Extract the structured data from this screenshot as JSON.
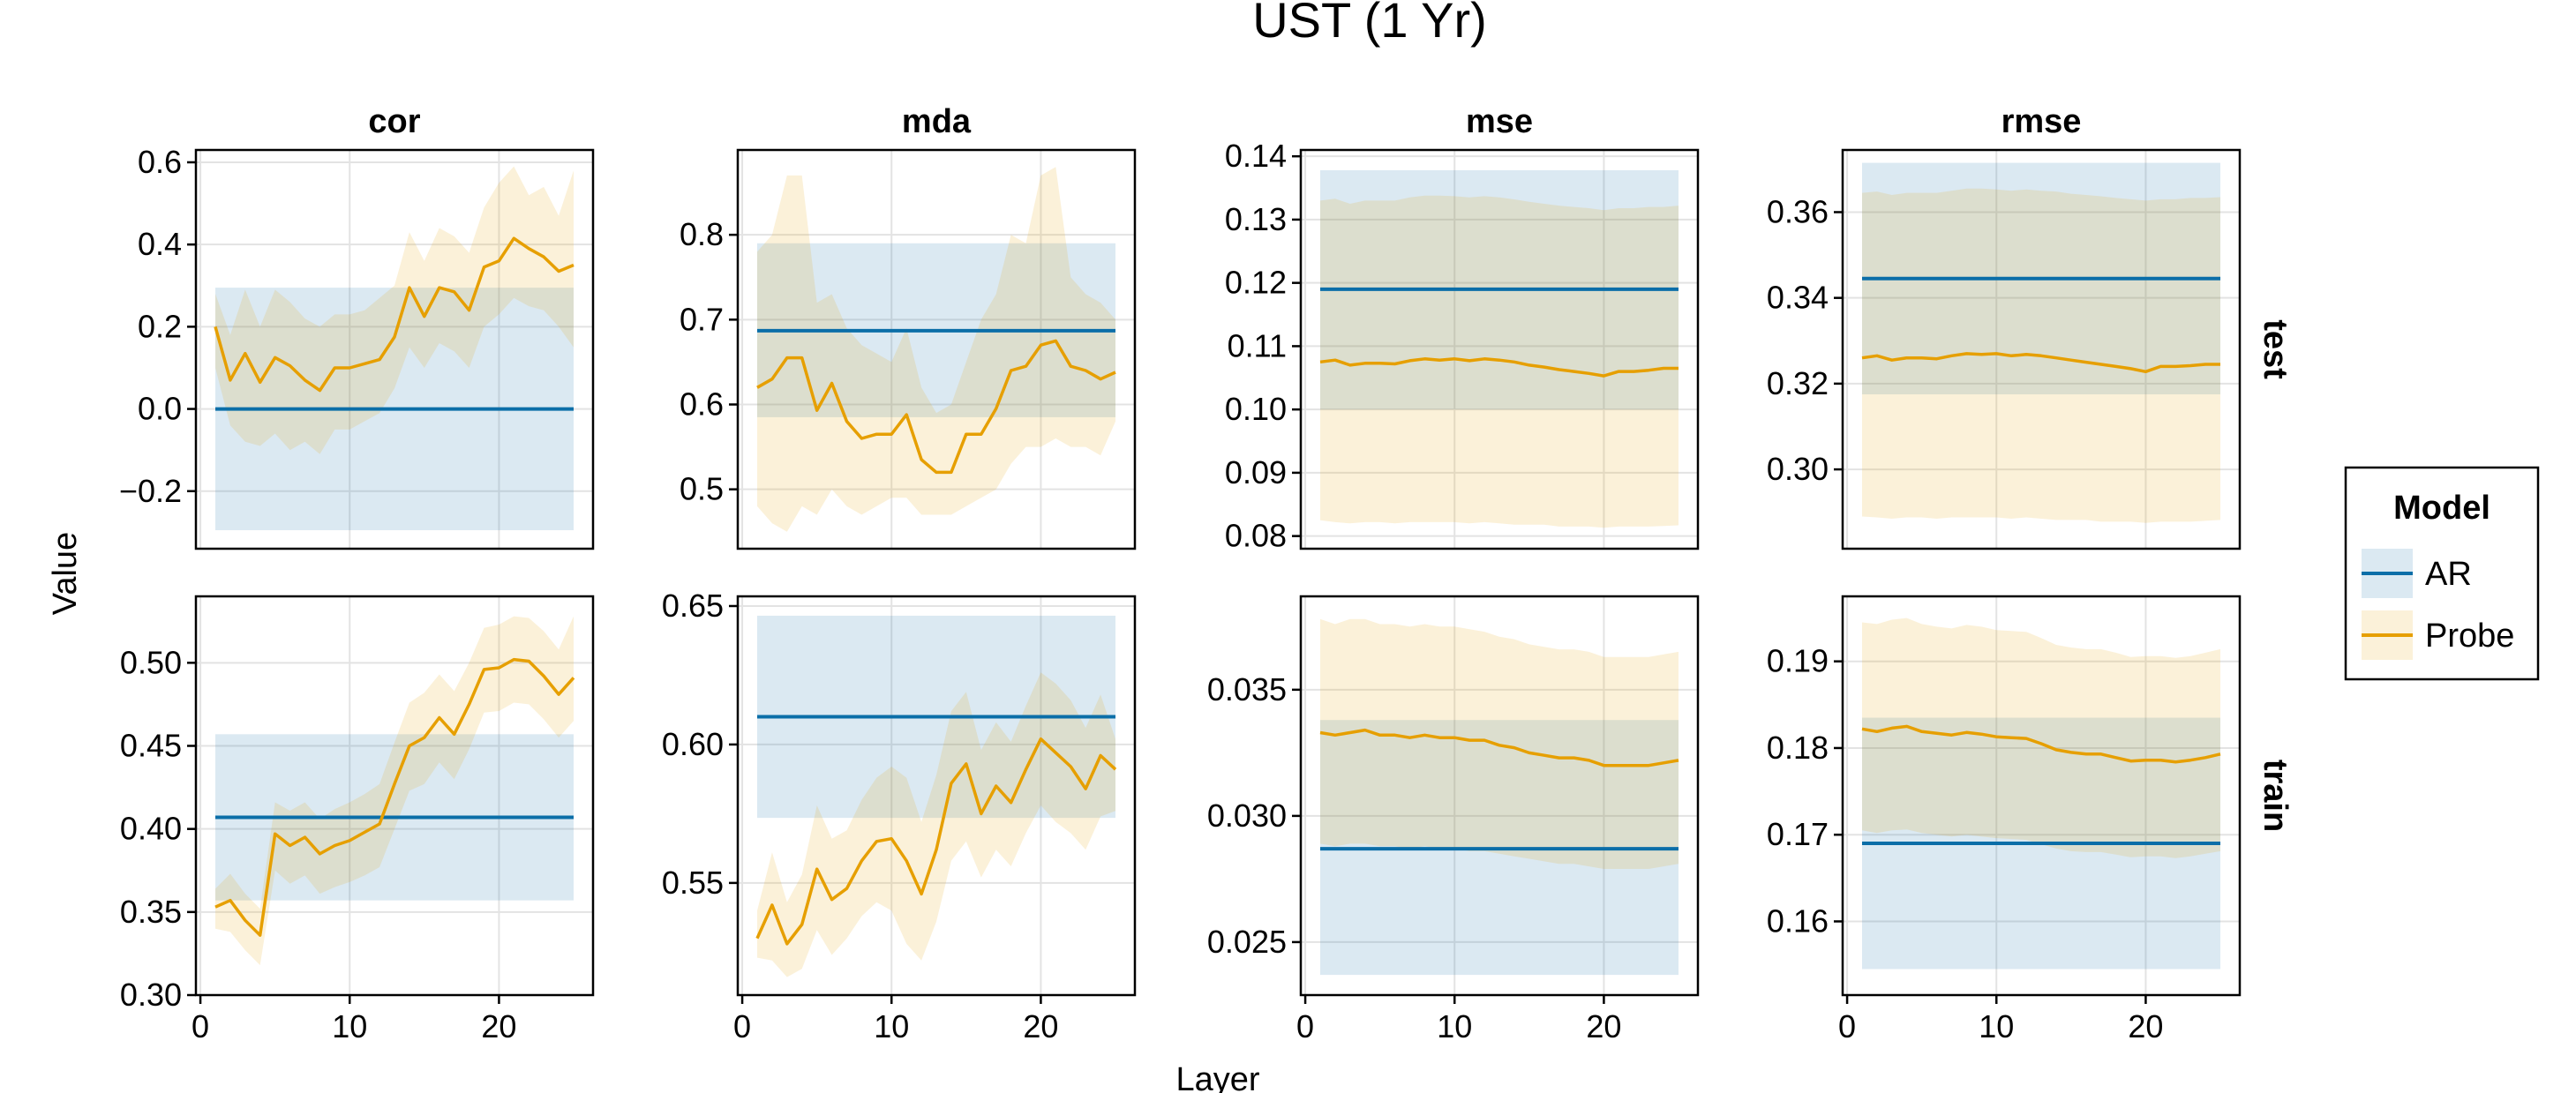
{
  "chart_data": {
    "type": "line",
    "title": "UST (1 Yr)",
    "xlabel": "Layer",
    "ylabel": "Value",
    "colors": {
      "AR": "#0b6ea8",
      "Probe": "#e69f00"
    },
    "legend": {
      "title": "Model",
      "placement": "right",
      "entries": [
        {
          "label": "AR",
          "color": "#0b6ea8"
        },
        {
          "label": "Probe",
          "color": "#e69f00"
        }
      ]
    },
    "grid": true,
    "panels": [
      {
        "metric": "cor",
        "split": "test",
        "col_title": "cor",
        "ylim": [
          -0.34,
          0.63
        ],
        "yticks": [
          -0.2,
          0.0,
          0.2,
          0.4,
          0.6
        ],
        "yticklabels": [
          "−0.2",
          "0.0",
          "0.2",
          "0.4",
          "0.6"
        ],
        "ar": {
          "value": 0.0,
          "lower": -0.295,
          "upper": 0.295
        },
        "probe": {
          "mean": [
            0.2,
            0.07,
            0.135,
            0.065,
            0.125,
            0.105,
            0.07,
            0.045,
            0.1,
            0.1,
            0.11,
            0.12,
            0.175,
            0.295,
            0.225,
            0.295,
            0.285,
            0.24,
            0.345,
            0.36,
            0.415,
            0.39,
            0.37,
            0.335,
            0.35
          ],
          "lower": [
            0.1,
            -0.04,
            -0.08,
            -0.09,
            -0.06,
            -0.1,
            -0.08,
            -0.11,
            -0.05,
            -0.05,
            -0.03,
            -0.01,
            0.05,
            0.15,
            0.1,
            0.16,
            0.14,
            0.1,
            0.2,
            0.23,
            0.27,
            0.25,
            0.24,
            0.2,
            0.15
          ],
          "upper": [
            0.28,
            0.18,
            0.29,
            0.2,
            0.29,
            0.26,
            0.22,
            0.2,
            0.23,
            0.23,
            0.24,
            0.27,
            0.3,
            0.43,
            0.36,
            0.44,
            0.42,
            0.38,
            0.49,
            0.55,
            0.59,
            0.52,
            0.54,
            0.47,
            0.58
          ]
        }
      },
      {
        "metric": "mda",
        "split": "test",
        "col_title": "mda",
        "ylim": [
          0.43,
          0.9
        ],
        "yticks": [
          0.5,
          0.6,
          0.7,
          0.8
        ],
        "yticklabels": [
          "0.5",
          "0.6",
          "0.7",
          "0.8"
        ],
        "ar": {
          "value": 0.687,
          "lower": 0.585,
          "upper": 0.79
        },
        "probe": {
          "mean": [
            0.62,
            0.63,
            0.655,
            0.655,
            0.593,
            0.625,
            0.58,
            0.56,
            0.565,
            0.565,
            0.588,
            0.535,
            0.52,
            0.52,
            0.565,
            0.565,
            0.595,
            0.64,
            0.645,
            0.67,
            0.675,
            0.645,
            0.64,
            0.63,
            0.638
          ],
          "lower": [
            0.48,
            0.46,
            0.45,
            0.48,
            0.47,
            0.5,
            0.48,
            0.47,
            0.48,
            0.49,
            0.49,
            0.47,
            0.47,
            0.47,
            0.48,
            0.49,
            0.5,
            0.53,
            0.55,
            0.55,
            0.56,
            0.55,
            0.55,
            0.54,
            0.58
          ],
          "upper": [
            0.78,
            0.8,
            0.87,
            0.87,
            0.72,
            0.73,
            0.69,
            0.67,
            0.66,
            0.65,
            0.69,
            0.62,
            0.59,
            0.6,
            0.65,
            0.7,
            0.73,
            0.8,
            0.79,
            0.87,
            0.88,
            0.75,
            0.73,
            0.72,
            0.7
          ]
        }
      },
      {
        "metric": "mse",
        "split": "test",
        "col_title": "mse",
        "ylim": [
          0.078,
          0.141
        ],
        "yticks": [
          0.08,
          0.09,
          0.1,
          0.11,
          0.12,
          0.13,
          0.14
        ],
        "yticklabels": [
          "0.08",
          "0.09",
          "0.10",
          "0.11",
          "0.12",
          "0.13",
          "0.14"
        ],
        "ar": {
          "value": 0.119,
          "lower": 0.1,
          "upper": 0.1378
        },
        "probe": {
          "mean": [
            0.1075,
            0.1078,
            0.107,
            0.1073,
            0.1073,
            0.1072,
            0.1077,
            0.108,
            0.1078,
            0.108,
            0.1077,
            0.108,
            0.1078,
            0.1075,
            0.107,
            0.1067,
            0.1063,
            0.106,
            0.1057,
            0.1053,
            0.106,
            0.106,
            0.1062,
            0.1065,
            0.1065
          ],
          "lower": [
            0.0825,
            0.0822,
            0.082,
            0.0822,
            0.0822,
            0.082,
            0.0822,
            0.0822,
            0.0822,
            0.0822,
            0.082,
            0.0822,
            0.082,
            0.0818,
            0.0818,
            0.0818,
            0.0815,
            0.0815,
            0.0815,
            0.0813,
            0.0815,
            0.0815,
            0.0815,
            0.0816,
            0.0817
          ],
          "upper": [
            0.133,
            0.1333,
            0.1325,
            0.133,
            0.133,
            0.133,
            0.1335,
            0.1338,
            0.1338,
            0.1337,
            0.1335,
            0.1337,
            0.1335,
            0.1332,
            0.1328,
            0.1325,
            0.1322,
            0.132,
            0.1318,
            0.1315,
            0.1318,
            0.1318,
            0.132,
            0.132,
            0.1322
          ]
        }
      },
      {
        "metric": "rmse",
        "split": "test",
        "col_title": "rmse",
        "row_label": "test",
        "ylim": [
          0.2815,
          0.3745
        ],
        "yticks": [
          0.3,
          0.32,
          0.34,
          0.36
        ],
        "yticklabels": [
          "0.30",
          "0.32",
          "0.34",
          "0.36"
        ],
        "ar": {
          "value": 0.3445,
          "lower": 0.3175,
          "upper": 0.3715
        },
        "probe": {
          "mean": [
            0.326,
            0.3265,
            0.3255,
            0.326,
            0.326,
            0.3258,
            0.3265,
            0.327,
            0.3268,
            0.327,
            0.3265,
            0.3268,
            0.3265,
            0.326,
            0.3255,
            0.325,
            0.3245,
            0.324,
            0.3235,
            0.3228,
            0.324,
            0.324,
            0.3242,
            0.3245,
            0.3245
          ],
          "lower": [
            0.289,
            0.2888,
            0.2885,
            0.2888,
            0.2888,
            0.2885,
            0.2888,
            0.2888,
            0.2888,
            0.2888,
            0.2885,
            0.2888,
            0.2885,
            0.2882,
            0.2882,
            0.2882,
            0.2878,
            0.2878,
            0.2878,
            0.2875,
            0.2878,
            0.2878,
            0.2878,
            0.288,
            0.2882
          ],
          "upper": [
            0.3645,
            0.3648,
            0.364,
            0.3645,
            0.3645,
            0.3645,
            0.365,
            0.3655,
            0.3655,
            0.3653,
            0.365,
            0.3653,
            0.365,
            0.3648,
            0.3643,
            0.364,
            0.3637,
            0.3633,
            0.363,
            0.3627,
            0.363,
            0.363,
            0.3633,
            0.3633,
            0.3635
          ]
        }
      },
      {
        "metric": "cor",
        "split": "train",
        "ylim": [
          0.3,
          0.54
        ],
        "yticks": [
          0.3,
          0.35,
          0.4,
          0.45,
          0.5
        ],
        "yticklabels": [
          "0.30",
          "0.35",
          "0.40",
          "0.45",
          "0.50"
        ],
        "ar": {
          "value": 0.407,
          "lower": 0.357,
          "upper": 0.457
        },
        "probe": {
          "mean": [
            0.353,
            0.357,
            0.345,
            0.336,
            0.397,
            0.39,
            0.395,
            0.385,
            0.39,
            0.393,
            0.398,
            0.403,
            0.427,
            0.45,
            0.455,
            0.467,
            0.457,
            0.475,
            0.496,
            0.497,
            0.502,
            0.501,
            0.492,
            0.481,
            0.491
          ],
          "lower": [
            0.34,
            0.338,
            0.327,
            0.318,
            0.375,
            0.367,
            0.372,
            0.361,
            0.365,
            0.368,
            0.372,
            0.377,
            0.4,
            0.423,
            0.427,
            0.44,
            0.43,
            0.448,
            0.47,
            0.471,
            0.476,
            0.475,
            0.466,
            0.455,
            0.465
          ],
          "upper": [
            0.364,
            0.373,
            0.361,
            0.352,
            0.416,
            0.411,
            0.416,
            0.406,
            0.412,
            0.416,
            0.421,
            0.427,
            0.452,
            0.476,
            0.482,
            0.493,
            0.483,
            0.5,
            0.521,
            0.523,
            0.528,
            0.527,
            0.519,
            0.508,
            0.528
          ]
        }
      },
      {
        "metric": "mda",
        "split": "train",
        "ylim": [
          0.5095,
          0.6535
        ],
        "yticks": [
          0.55,
          0.6,
          0.65
        ],
        "yticklabels": [
          "0.55",
          "0.60",
          "0.65"
        ],
        "ar": {
          "value": 0.61,
          "lower": 0.5735,
          "upper": 0.6465
        },
        "probe": {
          "mean": [
            0.53,
            0.542,
            0.528,
            0.535,
            0.555,
            0.544,
            0.548,
            0.558,
            0.565,
            0.566,
            0.558,
            0.546,
            0.562,
            0.586,
            0.593,
            0.575,
            0.585,
            0.579,
            0.591,
            0.602,
            0.597,
            0.592,
            0.584,
            0.596,
            0.591
          ],
          "lower": [
            0.523,
            0.522,
            0.516,
            0.519,
            0.533,
            0.524,
            0.53,
            0.538,
            0.543,
            0.54,
            0.528,
            0.522,
            0.536,
            0.558,
            0.565,
            0.552,
            0.562,
            0.556,
            0.568,
            0.578,
            0.572,
            0.568,
            0.562,
            0.574,
            0.576
          ],
          "upper": [
            0.54,
            0.561,
            0.543,
            0.553,
            0.578,
            0.566,
            0.569,
            0.58,
            0.588,
            0.592,
            0.588,
            0.572,
            0.589,
            0.612,
            0.619,
            0.598,
            0.608,
            0.601,
            0.614,
            0.626,
            0.622,
            0.616,
            0.606,
            0.618,
            0.602
          ]
        }
      },
      {
        "metric": "mse",
        "split": "train",
        "ylim": [
          0.0229,
          0.0387
        ],
        "yticks": [
          0.025,
          0.03,
          0.035
        ],
        "yticklabels": [
          "0.025",
          "0.030",
          "0.035"
        ],
        "ar": {
          "value": 0.0287,
          "lower": 0.0237,
          "upper": 0.0338
        },
        "probe": {
          "mean": [
            0.0333,
            0.0332,
            0.0333,
            0.0334,
            0.0332,
            0.0332,
            0.0331,
            0.0332,
            0.0331,
            0.0331,
            0.033,
            0.033,
            0.0328,
            0.0327,
            0.0325,
            0.0324,
            0.0323,
            0.0323,
            0.0322,
            0.032,
            0.032,
            0.032,
            0.032,
            0.0321,
            0.0322
          ],
          "lower": [
            0.0289,
            0.0288,
            0.0289,
            0.0289,
            0.0288,
            0.0288,
            0.0287,
            0.0288,
            0.0287,
            0.0287,
            0.0286,
            0.0286,
            0.0285,
            0.0284,
            0.0283,
            0.0282,
            0.0281,
            0.0281,
            0.028,
            0.0279,
            0.0279,
            0.0279,
            0.0279,
            0.028,
            0.0281
          ],
          "upper": [
            0.0378,
            0.0376,
            0.0378,
            0.0378,
            0.0376,
            0.0376,
            0.0375,
            0.0376,
            0.0375,
            0.0375,
            0.0374,
            0.0373,
            0.0371,
            0.037,
            0.0368,
            0.0367,
            0.0366,
            0.0366,
            0.0365,
            0.0363,
            0.0363,
            0.0363,
            0.0363,
            0.0364,
            0.0365
          ]
        }
      },
      {
        "metric": "rmse",
        "split": "train",
        "row_label": "train",
        "ylim": [
          0.1515,
          0.1975
        ],
        "yticks": [
          0.16,
          0.17,
          0.18,
          0.19
        ],
        "yticklabels": [
          "0.16",
          "0.17",
          "0.18",
          "0.19"
        ],
        "ar": {
          "value": 0.169,
          "lower": 0.1545,
          "upper": 0.1835
        },
        "probe": {
          "mean": [
            0.1822,
            0.1819,
            0.1823,
            0.1825,
            0.1819,
            0.1817,
            0.1815,
            0.1818,
            0.1816,
            0.1813,
            0.1812,
            0.1811,
            0.1805,
            0.1798,
            0.1795,
            0.1793,
            0.1793,
            0.1789,
            0.1785,
            0.1786,
            0.1786,
            0.1784,
            0.1786,
            0.1789,
            0.1793
          ],
          "lower": [
            0.1705,
            0.1702,
            0.1705,
            0.1706,
            0.1702,
            0.17,
            0.1698,
            0.17,
            0.1698,
            0.1696,
            0.1695,
            0.1694,
            0.1689,
            0.1684,
            0.1681,
            0.168,
            0.168,
            0.1677,
            0.1674,
            0.1675,
            0.1675,
            0.1673,
            0.1675,
            0.1678,
            0.1681
          ],
          "upper": [
            0.1945,
            0.1943,
            0.1948,
            0.195,
            0.1943,
            0.194,
            0.1938,
            0.1942,
            0.194,
            0.1936,
            0.1935,
            0.1934,
            0.1927,
            0.1919,
            0.1916,
            0.1914,
            0.1914,
            0.191,
            0.1905,
            0.1906,
            0.1906,
            0.1904,
            0.1906,
            0.191,
            0.1914
          ]
        }
      }
    ],
    "x": [
      1,
      2,
      3,
      4,
      5,
      6,
      7,
      8,
      9,
      10,
      11,
      12,
      13,
      14,
      15,
      16,
      17,
      18,
      19,
      20,
      21,
      22,
      23,
      24,
      25
    ],
    "xlim": [
      -0.3,
      26.3
    ],
    "xticks": [
      0,
      10,
      20
    ],
    "xticklabels": [
      "0",
      "10",
      "20"
    ]
  }
}
